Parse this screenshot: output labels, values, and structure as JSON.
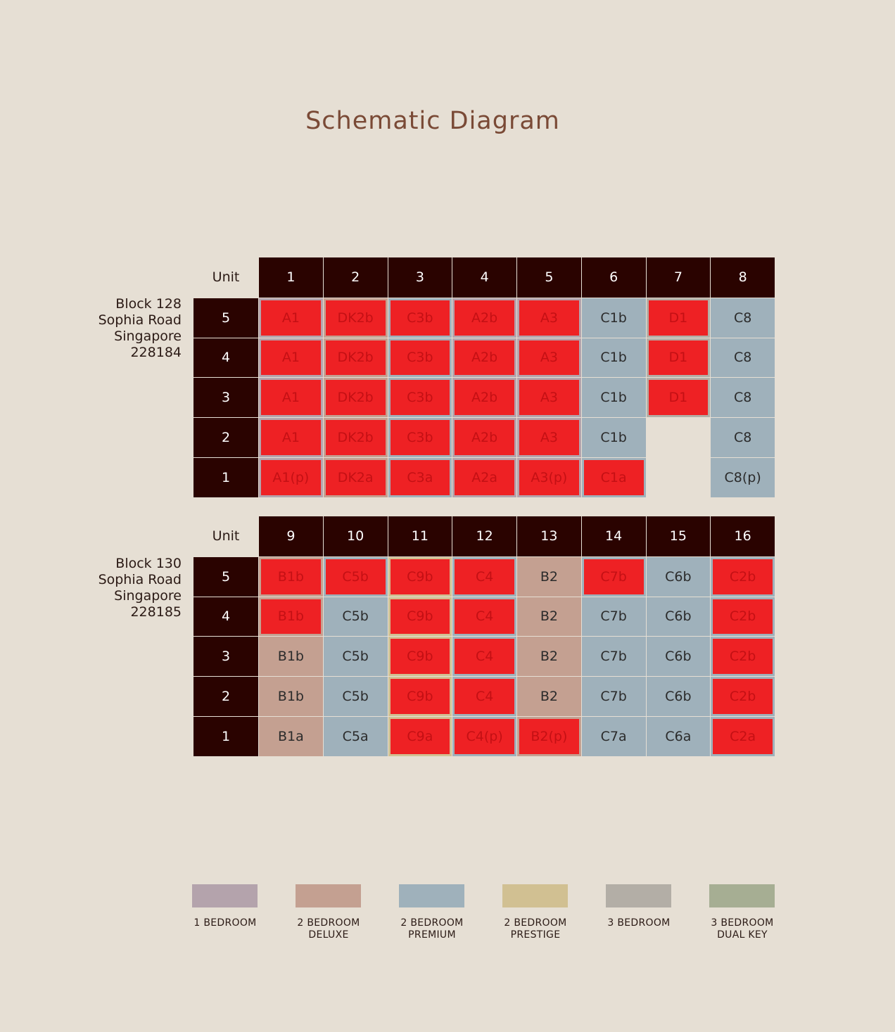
{
  "title": "Schematic Diagram",
  "colors": {
    "one_bedroom": "#b4a3ac",
    "two_bedroom_deluxe": "#c4a091",
    "two_bedroom_premium": "#9fb1bb",
    "two_bedroom_prestige": "#d1c092",
    "three_bedroom": "#b3aea6",
    "three_bedroom_dual_key": "#a6ae93",
    "sold_highlight": "#ee2124",
    "header_bg": "#2a0300"
  },
  "blocks": [
    {
      "address": [
        "Block 128",
        "Sophia Road",
        "Singapore",
        "228184"
      ],
      "unit_label": "Unit",
      "units": [
        "1",
        "2",
        "3",
        "4",
        "5",
        "6",
        "7",
        "8"
      ],
      "rows": [
        {
          "floor": "5",
          "cells": [
            {
              "label": "A1",
              "type": "one_bedroom",
              "sold": true
            },
            {
              "label": "DK2b",
              "type": "two_bedroom_deluxe",
              "sold": true
            },
            {
              "label": "C3b",
              "type": "two_bedroom_premium",
              "sold": true
            },
            {
              "label": "A2b",
              "type": "one_bedroom",
              "sold": true
            },
            {
              "label": "A3",
              "type": "one_bedroom",
              "sold": true
            },
            {
              "label": "C1b",
              "type": "two_bedroom_premium",
              "sold": false
            },
            {
              "label": "D1",
              "type": "three_bedroom",
              "sold": true
            },
            {
              "label": "C8",
              "type": "two_bedroom_premium",
              "sold": false
            }
          ]
        },
        {
          "floor": "4",
          "cells": [
            {
              "label": "A1",
              "type": "one_bedroom",
              "sold": true
            },
            {
              "label": "DK2b",
              "type": "two_bedroom_deluxe",
              "sold": true
            },
            {
              "label": "C3b",
              "type": "two_bedroom_premium",
              "sold": true
            },
            {
              "label": "A2b",
              "type": "one_bedroom",
              "sold": true
            },
            {
              "label": "A3",
              "type": "one_bedroom",
              "sold": true
            },
            {
              "label": "C1b",
              "type": "two_bedroom_premium",
              "sold": false
            },
            {
              "label": "D1",
              "type": "three_bedroom",
              "sold": true
            },
            {
              "label": "C8",
              "type": "two_bedroom_premium",
              "sold": false
            }
          ]
        },
        {
          "floor": "3",
          "cells": [
            {
              "label": "A1",
              "type": "one_bedroom",
              "sold": true
            },
            {
              "label": "DK2b",
              "type": "two_bedroom_deluxe",
              "sold": true
            },
            {
              "label": "C3b",
              "type": "two_bedroom_premium",
              "sold": true
            },
            {
              "label": "A2b",
              "type": "one_bedroom",
              "sold": true
            },
            {
              "label": "A3",
              "type": "one_bedroom",
              "sold": true
            },
            {
              "label": "C1b",
              "type": "two_bedroom_premium",
              "sold": false
            },
            {
              "label": "D1",
              "type": "three_bedroom",
              "sold": true
            },
            {
              "label": "C8",
              "type": "two_bedroom_premium",
              "sold": false
            }
          ]
        },
        {
          "floor": "2",
          "cells": [
            {
              "label": "A1",
              "type": "one_bedroom",
              "sold": true
            },
            {
              "label": "DK2b",
              "type": "two_bedroom_deluxe",
              "sold": true
            },
            {
              "label": "C3b",
              "type": "two_bedroom_premium",
              "sold": true
            },
            {
              "label": "A2b",
              "type": "one_bedroom",
              "sold": true
            },
            {
              "label": "A3",
              "type": "one_bedroom",
              "sold": true
            },
            {
              "label": "C1b",
              "type": "two_bedroom_premium",
              "sold": false
            },
            {
              "label": "",
              "type": "blank",
              "sold": false
            },
            {
              "label": "C8",
              "type": "two_bedroom_premium",
              "sold": false
            }
          ]
        },
        {
          "floor": "1",
          "cells": [
            {
              "label": "A1(p)",
              "type": "one_bedroom",
              "sold": true
            },
            {
              "label": "DK2a",
              "type": "two_bedroom_deluxe",
              "sold": true
            },
            {
              "label": "C3a",
              "type": "two_bedroom_premium",
              "sold": true
            },
            {
              "label": "A2a",
              "type": "one_bedroom",
              "sold": true
            },
            {
              "label": "A3(p)",
              "type": "one_bedroom",
              "sold": true
            },
            {
              "label": "C1a",
              "type": "two_bedroom_premium",
              "sold": true
            },
            {
              "label": "",
              "type": "blank",
              "sold": false
            },
            {
              "label": "C8(p)",
              "type": "two_bedroom_premium",
              "sold": false
            }
          ]
        }
      ]
    },
    {
      "address": [
        "Block 130",
        "Sophia Road",
        "Singapore",
        "228185"
      ],
      "unit_label": "Unit",
      "units": [
        "9",
        "10",
        "11",
        "12",
        "13",
        "14",
        "15",
        "16"
      ],
      "rows": [
        {
          "floor": "5",
          "cells": [
            {
              "label": "B1b",
              "type": "two_bedroom_deluxe",
              "sold": true
            },
            {
              "label": "C5b",
              "type": "two_bedroom_premium",
              "sold": true
            },
            {
              "label": "C9b",
              "type": "two_bedroom_prestige",
              "sold": true
            },
            {
              "label": "C4",
              "type": "two_bedroom_premium",
              "sold": true
            },
            {
              "label": "B2",
              "type": "two_bedroom_deluxe",
              "sold": false
            },
            {
              "label": "C7b",
              "type": "two_bedroom_premium",
              "sold": true
            },
            {
              "label": "C6b",
              "type": "two_bedroom_premium",
              "sold": false
            },
            {
              "label": "C2b",
              "type": "two_bedroom_premium",
              "sold": true
            }
          ]
        },
        {
          "floor": "4",
          "cells": [
            {
              "label": "B1b",
              "type": "two_bedroom_deluxe",
              "sold": true
            },
            {
              "label": "C5b",
              "type": "two_bedroom_premium",
              "sold": false
            },
            {
              "label": "C9b",
              "type": "two_bedroom_prestige",
              "sold": true
            },
            {
              "label": "C4",
              "type": "two_bedroom_premium",
              "sold": true
            },
            {
              "label": "B2",
              "type": "two_bedroom_deluxe",
              "sold": false
            },
            {
              "label": "C7b",
              "type": "two_bedroom_premium",
              "sold": false
            },
            {
              "label": "C6b",
              "type": "two_bedroom_premium",
              "sold": false
            },
            {
              "label": "C2b",
              "type": "two_bedroom_premium",
              "sold": true
            }
          ]
        },
        {
          "floor": "3",
          "cells": [
            {
              "label": "B1b",
              "type": "two_bedroom_deluxe",
              "sold": false
            },
            {
              "label": "C5b",
              "type": "two_bedroom_premium",
              "sold": false
            },
            {
              "label": "C9b",
              "type": "two_bedroom_prestige",
              "sold": true
            },
            {
              "label": "C4",
              "type": "two_bedroom_premium",
              "sold": true
            },
            {
              "label": "B2",
              "type": "two_bedroom_deluxe",
              "sold": false
            },
            {
              "label": "C7b",
              "type": "two_bedroom_premium",
              "sold": false
            },
            {
              "label": "C6b",
              "type": "two_bedroom_premium",
              "sold": false
            },
            {
              "label": "C2b",
              "type": "two_bedroom_premium",
              "sold": true
            }
          ]
        },
        {
          "floor": "2",
          "cells": [
            {
              "label": "B1b",
              "type": "two_bedroom_deluxe",
              "sold": false
            },
            {
              "label": "C5b",
              "type": "two_bedroom_premium",
              "sold": false
            },
            {
              "label": "C9b",
              "type": "two_bedroom_prestige",
              "sold": true
            },
            {
              "label": "C4",
              "type": "two_bedroom_premium",
              "sold": true
            },
            {
              "label": "B2",
              "type": "two_bedroom_deluxe",
              "sold": false
            },
            {
              "label": "C7b",
              "type": "two_bedroom_premium",
              "sold": false
            },
            {
              "label": "C6b",
              "type": "two_bedroom_premium",
              "sold": false
            },
            {
              "label": "C2b",
              "type": "two_bedroom_premium",
              "sold": true
            }
          ]
        },
        {
          "floor": "1",
          "cells": [
            {
              "label": "B1a",
              "type": "two_bedroom_deluxe",
              "sold": false
            },
            {
              "label": "C5a",
              "type": "two_bedroom_premium",
              "sold": false
            },
            {
              "label": "C9a",
              "type": "two_bedroom_prestige",
              "sold": true
            },
            {
              "label": "C4(p)",
              "type": "two_bedroom_premium",
              "sold": true
            },
            {
              "label": "B2(p)",
              "type": "two_bedroom_deluxe",
              "sold": true
            },
            {
              "label": "C7a",
              "type": "two_bedroom_premium",
              "sold": false
            },
            {
              "label": "C6a",
              "type": "two_bedroom_premium",
              "sold": false
            },
            {
              "label": "C2a",
              "type": "two_bedroom_premium",
              "sold": true
            }
          ]
        }
      ]
    }
  ],
  "legend": [
    {
      "key": "one_bedroom",
      "label": "1 BEDROOM"
    },
    {
      "key": "two_bedroom_deluxe",
      "label": "2 BEDROOM\nDELUXE"
    },
    {
      "key": "two_bedroom_premium",
      "label": "2 BEDROOM\nPREMIUM"
    },
    {
      "key": "two_bedroom_prestige",
      "label": "2 BEDROOM\nPRESTIGE"
    },
    {
      "key": "three_bedroom",
      "label": "3 BEDROOM"
    },
    {
      "key": "three_bedroom_dual_key",
      "label": "3 BEDROOM\nDUAL KEY"
    }
  ]
}
